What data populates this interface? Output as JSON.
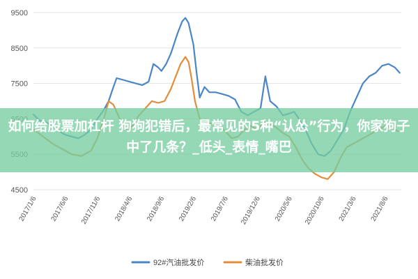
{
  "chart_data": {
    "type": "line",
    "title": "",
    "xlabel": "",
    "ylabel": "",
    "ylim": [
      4500,
      9500
    ],
    "yticks": [
      4500,
      5500,
      6500,
      7500,
      8500,
      9500
    ],
    "ytick_labels": [
      "4500",
      "5500",
      "6500",
      "7500",
      "8500",
      "9500"
    ],
    "xticks": [
      "2017/1/6",
      "2017/6/6",
      "2017/11/6",
      "2018/4/6",
      "2018/9/6",
      "2019/2/6",
      "2019/7/6",
      "2019/12/6",
      "2020/5/6",
      "2020/10/6",
      "2021/3/6",
      "2021/8/6"
    ],
    "x_index_range": [
      0,
      11.5
    ],
    "grid": true,
    "legend_position": "bottom",
    "series": [
      {
        "name": "92#汽油批发价",
        "color": "#4a86c5",
        "points": [
          [
            0,
            6620
          ],
          [
            0.2,
            6450
          ],
          [
            0.4,
            6400
          ],
          [
            0.6,
            6300
          ],
          [
            0.8,
            6150
          ],
          [
            1.0,
            6050
          ],
          [
            1.2,
            6000
          ],
          [
            1.4,
            5950
          ],
          [
            1.6,
            6050
          ],
          [
            1.8,
            6200
          ],
          [
            2.0,
            6500
          ],
          [
            2.2,
            6750
          ],
          [
            2.35,
            7000
          ],
          [
            2.5,
            7400
          ],
          [
            2.6,
            7650
          ],
          [
            2.8,
            7600
          ],
          [
            3.0,
            7550
          ],
          [
            3.2,
            7500
          ],
          [
            3.4,
            7450
          ],
          [
            3.6,
            7550
          ],
          [
            3.75,
            8050
          ],
          [
            3.9,
            7950
          ],
          [
            4.0,
            7850
          ],
          [
            4.15,
            8050
          ],
          [
            4.3,
            8350
          ],
          [
            4.5,
            8900
          ],
          [
            4.65,
            9250
          ],
          [
            4.75,
            9350
          ],
          [
            4.85,
            9200
          ],
          [
            5.0,
            8600
          ],
          [
            5.1,
            7800
          ],
          [
            5.2,
            7100
          ],
          [
            5.35,
            7400
          ],
          [
            5.5,
            7250
          ],
          [
            5.7,
            7250
          ],
          [
            5.9,
            7200
          ],
          [
            6.1,
            7150
          ],
          [
            6.3,
            7050
          ],
          [
            6.5,
            6700
          ],
          [
            6.7,
            6600
          ],
          [
            6.9,
            6700
          ],
          [
            7.1,
            6800
          ],
          [
            7.25,
            7700
          ],
          [
            7.4,
            7000
          ],
          [
            7.6,
            6850
          ],
          [
            7.8,
            6600
          ],
          [
            8.0,
            6650
          ],
          [
            8.15,
            6700
          ],
          [
            8.3,
            6500
          ],
          [
            8.5,
            6200
          ],
          [
            8.7,
            5800
          ],
          [
            8.9,
            5500
          ],
          [
            9.1,
            5450
          ],
          [
            9.3,
            5600
          ],
          [
            9.5,
            5900
          ],
          [
            9.7,
            6200
          ],
          [
            9.9,
            6700
          ],
          [
            10.1,
            7100
          ],
          [
            10.3,
            7500
          ],
          [
            10.5,
            7700
          ],
          [
            10.7,
            7800
          ],
          [
            10.9,
            8000
          ],
          [
            11.1,
            8050
          ],
          [
            11.3,
            7950
          ],
          [
            11.45,
            7800
          ]
        ]
      },
      {
        "name": "柴油批发价",
        "color": "#e08d3c",
        "points": [
          [
            0,
            6200
          ],
          [
            0.3,
            6000
          ],
          [
            0.6,
            5800
          ],
          [
            0.9,
            5650
          ],
          [
            1.2,
            5500
          ],
          [
            1.5,
            5450
          ],
          [
            1.8,
            5600
          ],
          [
            2.0,
            5950
          ],
          [
            2.2,
            6500
          ],
          [
            2.35,
            7000
          ],
          [
            2.5,
            6900
          ],
          [
            2.7,
            6500
          ],
          [
            2.9,
            6200
          ],
          [
            3.1,
            6300
          ],
          [
            3.3,
            6600
          ],
          [
            3.5,
            6800
          ],
          [
            3.7,
            7000
          ],
          [
            3.9,
            6950
          ],
          [
            4.1,
            7000
          ],
          [
            4.3,
            7350
          ],
          [
            4.45,
            7700
          ],
          [
            4.6,
            8050
          ],
          [
            4.75,
            8250
          ],
          [
            4.85,
            8100
          ],
          [
            4.95,
            7600
          ],
          [
            5.05,
            7000
          ],
          [
            5.2,
            6500
          ],
          [
            5.4,
            6400
          ],
          [
            5.6,
            6350
          ],
          [
            5.8,
            6300
          ],
          [
            6.0,
            6150
          ],
          [
            6.2,
            5950
          ],
          [
            6.4,
            6000
          ],
          [
            6.6,
            6200
          ],
          [
            6.8,
            6300
          ],
          [
            7.0,
            6200
          ],
          [
            7.2,
            6400
          ],
          [
            7.4,
            6350
          ],
          [
            7.6,
            6250
          ],
          [
            7.8,
            6100
          ],
          [
            8.0,
            6000
          ],
          [
            8.2,
            5700
          ],
          [
            8.4,
            5350
          ],
          [
            8.6,
            5100
          ],
          [
            8.8,
            4950
          ],
          [
            9.0,
            4850
          ],
          [
            9.2,
            4800
          ],
          [
            9.4,
            5000
          ],
          [
            9.6,
            5400
          ],
          [
            9.8,
            5700
          ],
          [
            10.0,
            5800
          ],
          [
            10.2,
            5900
          ],
          [
            10.4,
            6000
          ],
          [
            10.6,
            6100
          ],
          [
            10.8,
            6200
          ],
          [
            11.0,
            6300
          ],
          [
            11.2,
            6250
          ],
          [
            11.4,
            6150
          ]
        ]
      }
    ]
  },
  "overlay": {
    "headline": "如何给股票加杠杆 狗狗犯错后，最常见的5种“认怂”行为，你家狗子中了几条？_低头_表情_嘴巴",
    "band_color": "#76cda0"
  }
}
